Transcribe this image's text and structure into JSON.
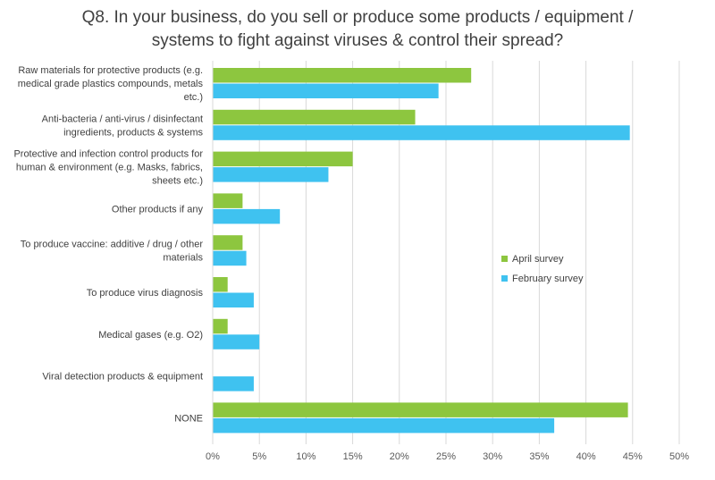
{
  "chart_data": {
    "type": "bar",
    "orientation": "horizontal",
    "title_lines": [
      "Q8. In your business, do you sell or produce some products / equipment /",
      "systems to fight against viruses & control their spread?"
    ],
    "categories": [
      [
        "Raw materials for protective products (e.g.",
        "medical grade plastics compounds, metals",
        "etc.)"
      ],
      [
        "Anti-bacteria / anti-virus / disinfectant",
        "ingredients, products & systems"
      ],
      [
        "Protective and infection control products for",
        "human & environment (e.g. Masks, fabrics,",
        "sheets etc.)"
      ],
      [
        "Other products if any"
      ],
      [
        "To produce vaccine: additive / drug / other",
        "materials"
      ],
      [
        "To produce virus diagnosis"
      ],
      [
        "Medical gases (e.g. O2)"
      ],
      [
        "Viral detection products & equipment"
      ],
      [
        "NONE"
      ]
    ],
    "series": [
      {
        "name": "April survey",
        "color": "#8DC63F",
        "values": [
          27.7,
          21.7,
          15.0,
          3.2,
          3.2,
          1.6,
          1.6,
          0,
          44.5
        ]
      },
      {
        "name": "February survey",
        "color": "#3FC2F0",
        "values": [
          24.2,
          44.7,
          12.4,
          7.2,
          3.6,
          4.4,
          5.0,
          4.4,
          36.6
        ]
      }
    ],
    "x_ticks": [
      "0%",
      "5%",
      "10%",
      "15%",
      "20%",
      "25%",
      "30%",
      "35%",
      "40%",
      "45%",
      "50%"
    ],
    "xlim": [
      0,
      50
    ],
    "grid": true,
    "legend_position": "right"
  }
}
